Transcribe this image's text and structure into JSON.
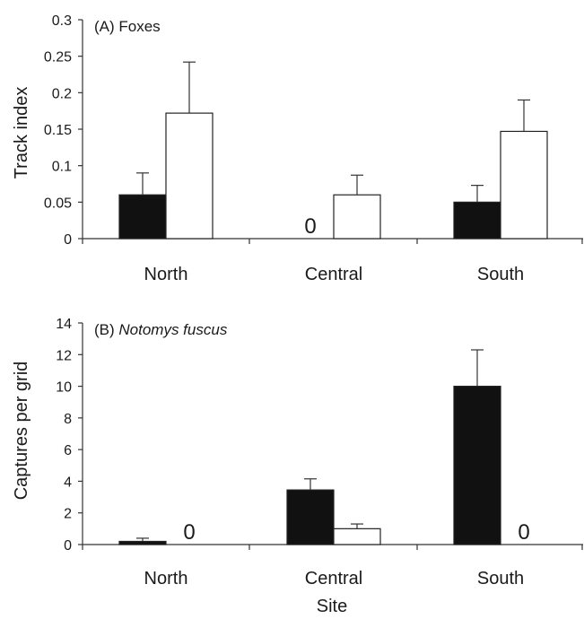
{
  "chart_data": [
    {
      "type": "bar",
      "panel_label": "(A) ",
      "title": "Foxes",
      "title_italic": false,
      "ylabel": "Track index",
      "xlabel": "",
      "ylim": [
        0,
        0.3
      ],
      "yticks": [
        "0",
        "0.05",
        "0.1",
        "0.15",
        "0.2",
        "0.25",
        "0.3"
      ],
      "categories": [
        "North",
        "Central",
        "South"
      ],
      "series": [
        {
          "values": [
            0.06,
            0,
            0.05
          ],
          "errors": [
            0.03,
            0,
            0.023
          ],
          "color": "#111111"
        },
        {
          "values": [
            0.172,
            0.06,
            0.147
          ],
          "errors": [
            0.07,
            0.027,
            0.043
          ],
          "color": "#ffffff"
        }
      ],
      "zero_label": "0",
      "zero_marks": [
        {
          "category": 1,
          "series": 0
        }
      ]
    },
    {
      "type": "bar",
      "panel_label": "(B) ",
      "title": "Notomys fuscus",
      "title_italic": true,
      "ylabel": "Captures per grid",
      "xlabel": "Site",
      "ylim": [
        0,
        14
      ],
      "yticks": [
        "0",
        "2",
        "4",
        "6",
        "8",
        "10",
        "12",
        "14"
      ],
      "categories": [
        "North",
        "Central",
        "South"
      ],
      "series": [
        {
          "values": [
            0.2,
            3.45,
            10
          ],
          "errors": [
            0.2,
            0.7,
            2.3
          ],
          "color": "#111111"
        },
        {
          "values": [
            0,
            1.0,
            0
          ],
          "errors": [
            0,
            0.3,
            0
          ],
          "color": "#ffffff"
        }
      ],
      "zero_label": "0",
      "zero_marks": [
        {
          "category": 0,
          "series": 1
        },
        {
          "category": 2,
          "series": 1
        }
      ]
    }
  ]
}
